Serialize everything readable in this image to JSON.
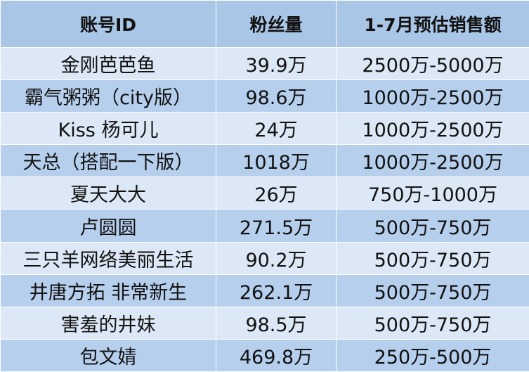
{
  "table": {
    "headers": [
      "账号ID",
      "粉丝量",
      "1-7月预估销售额"
    ],
    "rows": [
      [
        "金刚芭芭鱼",
        "39.9万",
        "2500万-5000万"
      ],
      [
        "霸气粥粥（city版）",
        "98.6万",
        "1000万-2500万"
      ],
      [
        "Kiss 杨可儿",
        "24万",
        "1000万-2500万"
      ],
      [
        "天总（搭配一下版）",
        "1018万",
        "1000万-2500万"
      ],
      [
        "夏天大大",
        "26万",
        "750万-1000万"
      ],
      [
        "卢圆圆",
        "271.5万",
        "500万-750万"
      ],
      [
        "三只羊网络美丽生活",
        "90.2万",
        "500万-750万"
      ],
      [
        "井唐方拓 非常新生",
        "262.1万",
        "500万-750万"
      ],
      [
        "害羞的井妹",
        "98.5万",
        "500万-750万"
      ],
      [
        "包文婧",
        "469.8万",
        "250万-500万"
      ]
    ]
  },
  "colors": {
    "header_bg": "#a9c6e7",
    "row_light": "#dce8f6",
    "row_dark": "#b6cfed"
  }
}
